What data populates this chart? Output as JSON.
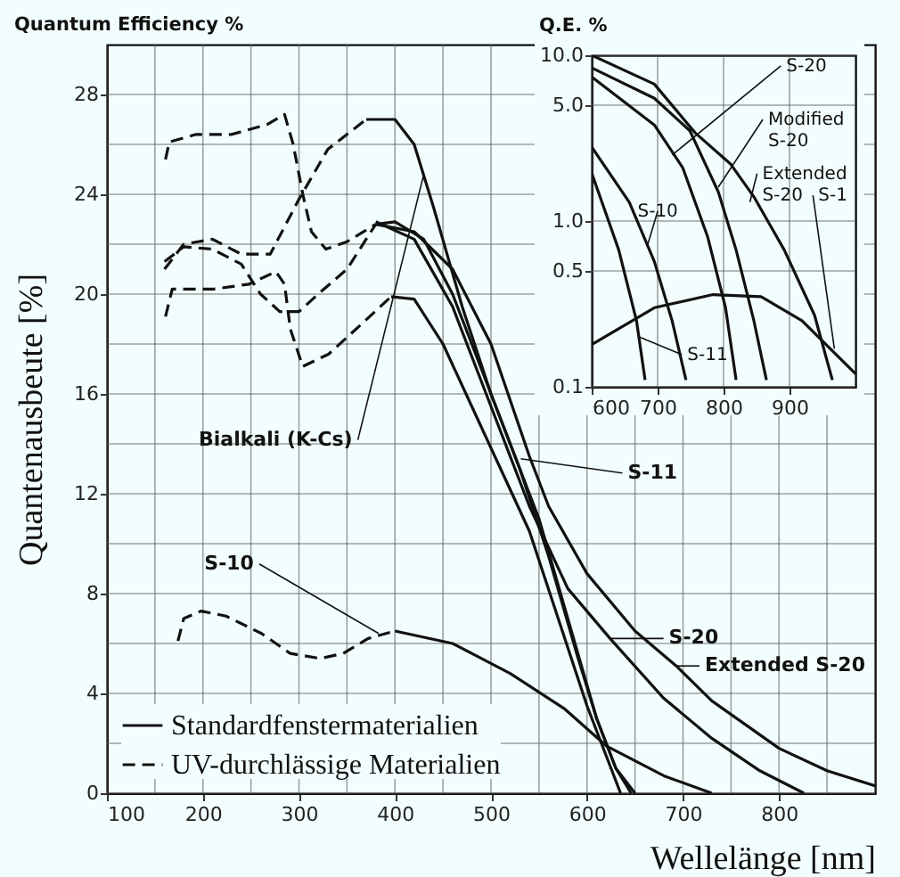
{
  "chart_data": [
    {
      "type": "line",
      "title": "Quantum Efficiency %",
      "xlabel": "Wellelänge [nm]",
      "ylabel": "Quantenausbeute [%]",
      "xlim": [
        100,
        900
      ],
      "ylim": [
        0,
        30
      ],
      "xticks": [
        100,
        {
          "value": 150,
          "label": null
        },
        200,
        {
          "value": 250,
          "label": null
        },
        300,
        {
          "value": 350,
          "label": null
        },
        400,
        {
          "value": 450,
          "label": null
        },
        500,
        {
          "value": 550,
          "label": null
        },
        600,
        {
          "value": 650,
          "label": null
        },
        700,
        {
          "value": 750,
          "label": null
        },
        800,
        {
          "value": 850,
          "label": null
        }
      ],
      "yticks": [
        0,
        {
          "value": 2,
          "label": null
        },
        4,
        {
          "value": 6,
          "label": null
        },
        8,
        {
          "value": 10,
          "label": null
        },
        12,
        {
          "value": 14,
          "label": null
        },
        16,
        {
          "value": 18,
          "label": null
        },
        20,
        {
          "value": 22,
          "label": null
        },
        24,
        {
          "value": 26,
          "label": null
        },
        28
      ],
      "grid": true,
      "legend": "bottom left",
      "series": [
        {
          "name": "Standardfenstermaterialien",
          "color": "#111111",
          "line_style": "solid",
          "x": [
            370,
            400,
            420,
            440,
            470,
            500,
            530,
            560,
            590,
            610,
            630,
            650
          ],
          "values": [
            27,
            27,
            26,
            23.5,
            19.5,
            16,
            13,
            9.5,
            5.5,
            3,
            1,
            0
          ]
        },
        {
          "color": "#111111",
          "line_style": "solid",
          "x": [
            380,
            400,
            430,
            460,
            490,
            520,
            550,
            580,
            610,
            630,
            646
          ],
          "values": [
            22.8,
            22.9,
            22.2,
            20,
            17,
            14,
            11,
            7,
            3,
            1,
            0
          ]
        },
        {
          "color": "#111111",
          "line_style": "solid",
          "x": [
            380,
            420,
            460,
            500,
            540,
            580,
            624,
            680,
            730,
            780,
            826
          ],
          "values": [
            22.9,
            22.2,
            19.5,
            15.5,
            11.5,
            8.2,
            6.2,
            3.8,
            2.2,
            0.9,
            0
          ]
        },
        {
          "color": "#111111",
          "line_style": "solid",
          "x": [
            380,
            420,
            460,
            500,
            540,
            560,
            600,
            650,
            693,
            730,
            800,
            850,
            900
          ],
          "values": [
            22.8,
            22.5,
            21,
            18,
            13.5,
            11.5,
            8.8,
            6.5,
            5.1,
            3.7,
            1.8,
            0.9,
            0.3
          ]
        },
        {
          "color": "#111111",
          "line_style": "solid",
          "x": [
            396,
            420,
            450,
            480,
            510,
            540,
            570,
            600,
            620,
            635
          ],
          "values": [
            19.9,
            19.8,
            18,
            15.5,
            13,
            10.5,
            7,
            3.5,
            1.5,
            0
          ]
        },
        {
          "color": "#111111",
          "line_style": "solid",
          "x": [
            400,
            460,
            520,
            576,
            620,
            680,
            730
          ],
          "values": [
            6.5,
            6,
            4.8,
            3.4,
            1.9,
            0.7,
            0
          ]
        },
        {
          "name": "UV-durchlässige Materialien",
          "color": "#111111",
          "line_style": "dashed",
          "x": [
            161,
            165,
            193,
            230,
            267,
            285,
            294,
            304,
            313,
            328,
            350,
            380
          ],
          "values": [
            25.4,
            26.1,
            26.4,
            26.4,
            26.8,
            27.2,
            26,
            24,
            22.5,
            21.8,
            22.1,
            22.8
          ]
        },
        {
          "color": "#111111",
          "line_style": "dashed",
          "x": [
            160,
            180,
            210,
            240,
            270,
            300,
            330,
            370
          ],
          "values": [
            21,
            22,
            22.2,
            21.6,
            21.6,
            23.8,
            25.8,
            27
          ]
        },
        {
          "color": "#111111",
          "line_style": "dashed",
          "x": [
            160,
            180,
            210,
            240,
            260,
            280,
            300,
            320,
            350,
            380
          ],
          "values": [
            21.3,
            21.9,
            21.8,
            21.2,
            20,
            19.3,
            19.3,
            20,
            21,
            22.8
          ]
        },
        {
          "color": "#111111",
          "line_style": "dashed",
          "x": [
            161,
            168,
            211,
            248,
            276,
            285,
            291,
            304,
            331,
            368,
            396
          ],
          "values": [
            19.1,
            20.2,
            20.2,
            20.4,
            20.9,
            20.4,
            18.6,
            17.1,
            17.6,
            18.9,
            19.9
          ]
        },
        {
          "color": "#111111",
          "line_style": "dashed",
          "x": [
            174,
            180,
            198,
            224,
            261,
            291,
            322,
            346,
            372,
            400
          ],
          "values": [
            6.1,
            7,
            7.3,
            7.1,
            6.4,
            5.6,
            5.4,
            5.6,
            6.2,
            6.5
          ]
        }
      ],
      "annotations": [
        {
          "text": "Bialkali (K-Cs)",
          "x": 430,
          "y": 24.8
        },
        {
          "text": "S-11",
          "x": 531,
          "y": 13.4
        },
        {
          "text": "S-10",
          "x": 383,
          "y": 6.4
        },
        {
          "text": "S-20",
          "x": 624,
          "y": 6.2
        },
        {
          "text": "Extended S-20",
          "x": 693,
          "y": 5.1
        }
      ]
    },
    {
      "type": "line",
      "title": "Q.E. %",
      "log": "y",
      "xlim": [
        600,
        1000
      ],
      "ylim": [
        0.1,
        10
      ],
      "xticks": [
        600,
        700,
        800,
        900
      ],
      "yticks": [
        0.1,
        0.5,
        {
          "value": 1,
          "label": "1.0"
        },
        {
          "value": 5,
          "label": "5.0"
        },
        {
          "value": 10,
          "label": "10.0"
        }
      ],
      "grid": true,
      "series": [
        {
          "color": "#111111",
          "line_style": "solid",
          "x": [
            600,
            695,
            757,
            811,
            846,
            892,
            938,
            965
          ],
          "values": [
            10,
            6.7,
            3.4,
            2.2,
            1.4,
            0.67,
            0.27,
            0.11
          ]
        },
        {
          "color": "#111111",
          "line_style": "solid",
          "x": [
            600,
            695,
            749,
            792,
            819,
            846,
            865
          ],
          "values": [
            8.4,
            5.5,
            3.5,
            1.5,
            0.67,
            0.25,
            0.11
          ]
        },
        {
          "color": "#111111",
          "line_style": "solid",
          "x": [
            600,
            695,
            738,
            776,
            803,
            819
          ],
          "values": [
            7.4,
            3.8,
            2.1,
            0.8,
            0.3,
            0.11
          ]
        },
        {
          "color": "#111111",
          "line_style": "solid",
          "x": [
            600,
            657,
            695,
            722,
            743
          ],
          "values": [
            2.8,
            1.3,
            0.57,
            0.25,
            0.11
          ]
        },
        {
          "color": "#111111",
          "line_style": "solid",
          "x": [
            600,
            641,
            668,
            681
          ],
          "values": [
            1.95,
            0.67,
            0.25,
            0.11
          ]
        },
        {
          "color": "#111111",
          "line_style": "solid",
          "x": [
            600,
            695,
            784,
            857,
            919,
            1000
          ],
          "values": [
            0.18,
            0.3,
            0.36,
            0.35,
            0.25,
            0.12
          ]
        }
      ],
      "annotations": [
        {
          "text": "S-20",
          "x": 722,
          "y": 2.5
        },
        {
          "text": "Modified\nS-20",
          "x": 792,
          "y": 1.6
        },
        {
          "text": "Extended\nS-20",
          "x": 840,
          "y": 1.3
        },
        {
          "text": "S-10",
          "x": 684,
          "y": 0.7
        },
        {
          "text": "S-11",
          "x": 672,
          "y": 0.2
        },
        {
          "text": "S-1",
          "x": 968,
          "y": 0.17
        }
      ]
    }
  ]
}
